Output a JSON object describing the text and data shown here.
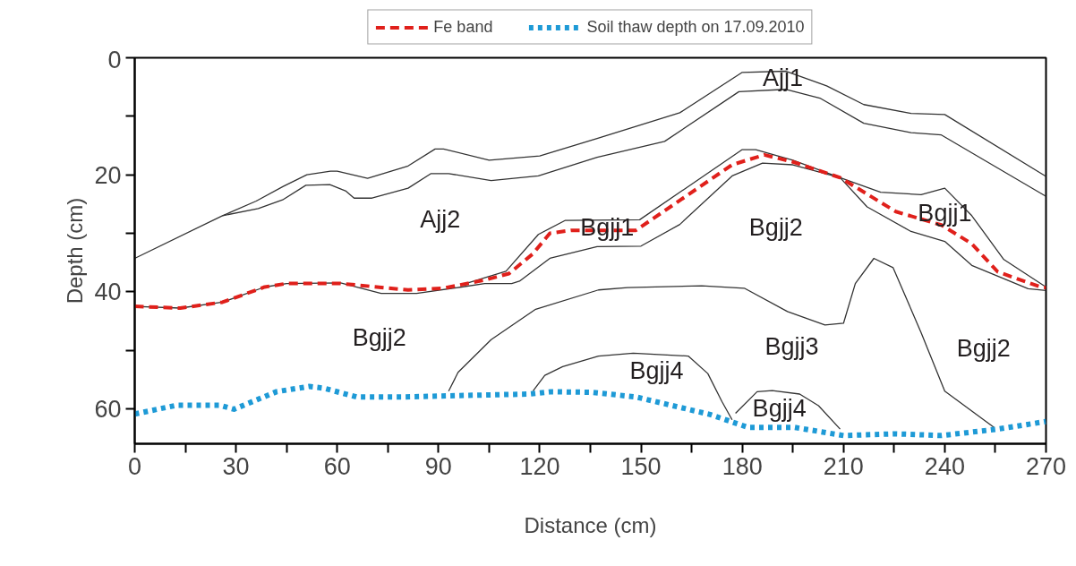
{
  "chart_data": {
    "type": "line",
    "xlabel": "Distance (cm)",
    "ylabel": "Depth (cm)",
    "xlim": [
      0,
      270
    ],
    "ylim": [
      66,
      0
    ],
    "xticks": [
      0,
      {
        "value": 15,
        "label": null
      },
      30,
      {
        "value": 45,
        "label": null
      },
      60,
      {
        "value": 75,
        "label": null
      },
      90,
      {
        "value": 105,
        "label": null
      },
      120,
      {
        "value": 135,
        "label": null
      },
      150,
      {
        "value": 165,
        "label": null
      },
      180,
      {
        "value": 195,
        "label": null
      },
      210,
      {
        "value": 225,
        "label": null
      },
      240,
      {
        "value": 255,
        "label": null
      },
      270
    ],
    "yticks": [
      0,
      {
        "value": 10,
        "label": null
      },
      20,
      {
        "value": 30,
        "label": null
      },
      40,
      {
        "value": 50,
        "label": null
      },
      60
    ],
    "grid": false,
    "legend": "top",
    "marker": "none",
    "series": [
      {
        "color": "#333333",
        "line_style": "solid",
        "x": [
          0,
          26,
          36,
          44,
          51,
          58,
          60,
          69,
          81,
          89,
          91.5,
          105,
          120,
          137,
          161.5,
          180,
          193,
          205,
          216,
          230,
          240,
          270
        ],
        "values": [
          34.3,
          27,
          24.5,
          22,
          20,
          19.4,
          19.4,
          20.6,
          18.5,
          15.6,
          15.6,
          17.5,
          16.8,
          13.8,
          9.4,
          2.5,
          2.3,
          4.8,
          8,
          9.5,
          9.7,
          20.3
        ]
      },
      {
        "color": "#333333",
        "line_style": "solid",
        "x": [
          26,
          36.6,
          43.8,
          50.7,
          57.8,
          62.6,
          65,
          70.3,
          81,
          87.8,
          93,
          105.6,
          119.6,
          137,
          157,
          179,
          193,
          203,
          216,
          230,
          239,
          270
        ],
        "values": [
          27,
          25.8,
          24.3,
          21.8,
          21.7,
          22.8,
          24,
          24,
          22.3,
          19.8,
          19.8,
          21,
          20.2,
          17,
          14.3,
          5.8,
          5.4,
          6.9,
          11.2,
          12.8,
          13.2,
          23.7
        ]
      },
      {
        "color": "#333333",
        "line_style": "solid",
        "x": [
          97,
          110,
          119.6,
          127.6,
          149.6,
          180,
          184,
          195,
          209,
          221,
          233,
          240,
          248,
          257.5,
          270
        ],
        "values": [
          38.8,
          36.5,
          30.2,
          27.8,
          27.7,
          15.7,
          15.7,
          17.5,
          20.5,
          23,
          23.4,
          22.3,
          27,
          34.5,
          39.2
        ]
      },
      {
        "color": "#333333",
        "line_style": "solid",
        "x": [
          0,
          13.5,
          26,
          38.5,
          45,
          61,
          73,
          83.5,
          96.8,
          103.7,
          111.7,
          114,
          123,
          137,
          150,
          161.5,
          177,
          186,
          195,
          209,
          217,
          230,
          240,
          248,
          264.7,
          270
        ],
        "values": [
          42.5,
          42.8,
          41.8,
          39.2,
          38.6,
          38.5,
          40.3,
          40.3,
          39.2,
          38.6,
          38.6,
          38.2,
          34.3,
          32.3,
          32.2,
          28.5,
          20.2,
          18,
          18.3,
          20.5,
          25.5,
          29.7,
          31.4,
          35.5,
          39.5,
          39.8
        ]
      },
      {
        "color": "#333333",
        "line_style": "solid",
        "x": [
          93,
          95.8,
          105.6,
          118.8,
          137.4,
          146,
          168,
          180.6,
          193.4,
          204.5,
          210,
          213.5,
          219,
          224.7,
          233,
          240,
          254.6
        ],
        "values": [
          57,
          53.8,
          48.2,
          43,
          39.7,
          39.3,
          39,
          39.4,
          43.4,
          45.7,
          45.4,
          38.6,
          34.3,
          35.9,
          47,
          57,
          63.2
        ]
      },
      {
        "color": "#333333",
        "line_style": "solid",
        "x": [
          118,
          121.5,
          126.8,
          137.4,
          147.7,
          164,
          169.8,
          174,
          177
        ],
        "values": [
          57,
          54.3,
          52.8,
          51,
          50.5,
          51,
          54,
          58.8,
          61.9
        ]
      },
      {
        "color": "#333333",
        "line_style": "solid",
        "x": [
          178,
          184.4,
          188.9,
          197,
          202.6,
          209
        ],
        "values": [
          60.8,
          57.1,
          56.9,
          57.5,
          59.5,
          63.5
        ]
      },
      {
        "name": "Fe band",
        "color": "#e0201b",
        "line_style": "dashed",
        "x": [
          0,
          13.5,
          26,
          38.5,
          45,
          61,
          81,
          91.5,
          103.7,
          110.9,
          118,
          123,
          129.4,
          148.5,
          177,
          186.5,
          195,
          209,
          225.5,
          239,
          248,
          255.7,
          268.4,
          270
        ],
        "values": [
          42.5,
          42.8,
          41.8,
          39.2,
          38.6,
          38.6,
          39.7,
          39.4,
          38,
          36.9,
          33.5,
          30,
          29.5,
          29.5,
          18.3,
          16.6,
          17.8,
          20.5,
          26.3,
          28.6,
          31.8,
          36.6,
          39.2,
          39.3
        ]
      },
      {
        "name": "Soil thaw depth on 17.09.2010",
        "color": "#1e9ad6",
        "line_style": "dotted",
        "x": [
          0,
          12.7,
          25.2,
          29.4,
          42,
          51.7,
          56,
          65.8,
          79,
          93,
          117,
          123.3,
          135.5,
          148.5,
          170.5,
          181.7,
          195.5,
          210,
          225.5,
          239,
          255.7,
          270
        ],
        "values": [
          60.9,
          59.4,
          59.4,
          60.1,
          57.1,
          56.2,
          56.5,
          58,
          58,
          57.8,
          57.5,
          57.1,
          57.2,
          58,
          61,
          63.2,
          63.2,
          64.6,
          64.3,
          64.6,
          63.5,
          62.2
        ]
      }
    ],
    "annotations": [
      "Ajj1",
      "Ajj2",
      "Bgjj1",
      "Bgjj2",
      "Bgjj1",
      "Bgjj2",
      "Bgjj3",
      "Bgjj2",
      "Bgjj4",
      "Bgjj4"
    ]
  }
}
